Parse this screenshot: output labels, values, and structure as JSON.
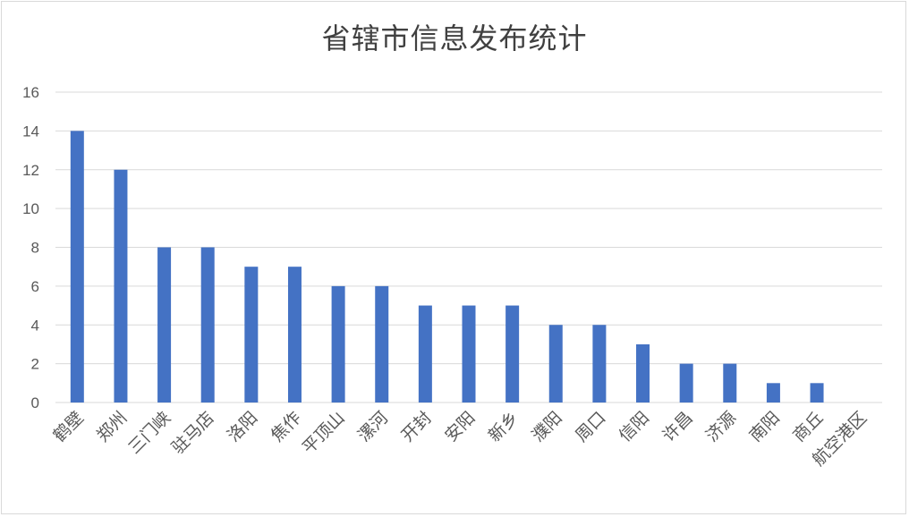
{
  "chart_data": {
    "type": "bar",
    "title": "省辖市信息发布统计",
    "xlabel": "",
    "ylabel": "",
    "ylim": [
      0,
      16
    ],
    "yticks": [
      0,
      2,
      4,
      6,
      8,
      10,
      12,
      14,
      16
    ],
    "grid": true,
    "legend": "none",
    "bar_color": "#4472c4",
    "categories": [
      "鹤壁",
      "郑州",
      "三门峡",
      "驻马店",
      "洛阳",
      "焦作",
      "平顶山",
      "漯河",
      "开封",
      "安阳",
      "新乡",
      "濮阳",
      "周口",
      "信阳",
      "许昌",
      "济源",
      "南阳",
      "商丘",
      "航空港区"
    ],
    "values": [
      14,
      12,
      8,
      8,
      7,
      7,
      6,
      6,
      5,
      5,
      5,
      4,
      4,
      3,
      2,
      2,
      1,
      1,
      0
    ]
  }
}
